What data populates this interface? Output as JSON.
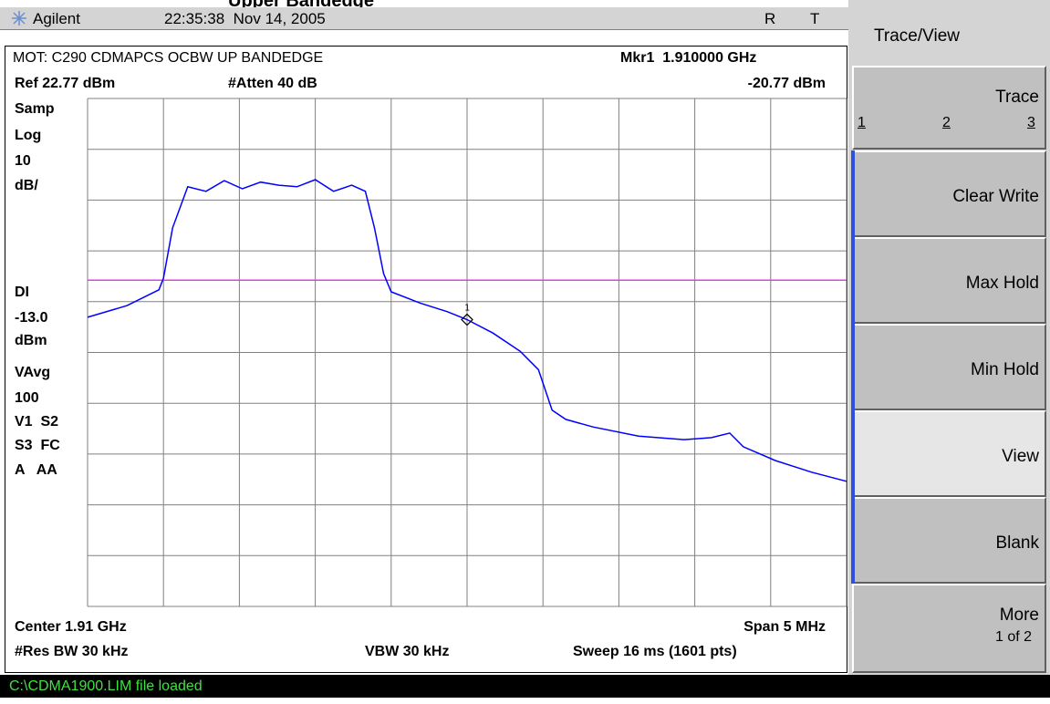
{
  "title_fragment": "Upper Bandedge",
  "status_bar": {
    "brand": "Agilent",
    "datetime": "22:35:38  Nov 14, 2005",
    "flags": [
      "R",
      "T"
    ]
  },
  "screen": {
    "title": "MOT: C290 CDMAPCS OCBW UP BANDEDGE",
    "marker_readout": "Mkr1  1.910000 GHz",
    "ref": "Ref 22.77 dBm",
    "atten": "#Atten 40 dB",
    "marker_level": "-20.77 dBm",
    "left_annotations": [
      "Samp",
      "Log",
      "10",
      "dB/",
      "DI",
      "-13.0",
      "dBm",
      "VAvg",
      "100",
      "V1  S2",
      "S3  FC",
      "A   AA"
    ],
    "center": "Center 1.91 GHz",
    "span": "Span 5 MHz",
    "res_bw": "#Res BW 30 kHz",
    "vbw": "VBW 30 kHz",
    "sweep": "Sweep 16 ms (1601 pts)"
  },
  "trace": {
    "type": "line",
    "color": "#0000ff",
    "xlim": [
      1.9075,
      1.9125
    ],
    "ylim": [
      -77.23,
      22.77
    ],
    "xticks": [
      1.9075,
      1.908,
      1.9085,
      1.909,
      1.9095,
      1.91,
      1.9105,
      1.911,
      1.9115,
      1.912,
      1.9125
    ],
    "yticks": [
      22.77,
      12.77,
      2.77,
      -7.23,
      -17.23,
      -27.23,
      -37.23,
      -47.23,
      -57.23,
      -67.23,
      -77.23
    ],
    "x": [
      1.9075,
      1.90776,
      1.90797,
      1.908,
      1.90806,
      1.90816,
      1.90828,
      1.9084,
      1.90852,
      1.90864,
      1.90876,
      1.90888,
      1.909,
      1.90912,
      1.90924,
      1.90933,
      1.90939,
      1.90945,
      1.9095,
      1.90969,
      1.90987,
      1.91,
      1.91017,
      1.91035,
      1.91047,
      1.91056,
      1.91065,
      1.91083,
      1.91113,
      1.91143,
      1.91161,
      1.91173,
      1.91182,
      1.91203,
      1.91227,
      1.9125
    ],
    "values": [
      -20.3,
      -18.0,
      -14.9,
      -12.6,
      -2.7,
      5.4,
      4.5,
      6.6,
      5.0,
      6.3,
      5.7,
      5.4,
      6.8,
      4.5,
      5.7,
      4.5,
      -2.7,
      -11.7,
      -15.3,
      -17.5,
      -19.2,
      -20.77,
      -23.4,
      -27.0,
      -30.6,
      -38.6,
      -40.4,
      -41.9,
      -43.7,
      -44.4,
      -44.0,
      -43.1,
      -45.8,
      -48.5,
      -50.8,
      -52.6
    ],
    "display_line": -13,
    "display_line_color": "#e040e0",
    "marker": {
      "label": "1",
      "x": 1.91,
      "value": -20.77
    }
  },
  "softkeys": {
    "menu": "Trace/View",
    "keys": [
      {
        "label": "Trace",
        "sub": [
          "1",
          "2",
          "3"
        ]
      },
      {
        "label": "Clear Write"
      },
      {
        "label": "Max Hold"
      },
      {
        "label": "Min Hold"
      },
      {
        "label": "View"
      },
      {
        "label": "Blank"
      },
      {
        "label": "More",
        "sub": [
          "1 of 2"
        ]
      }
    ]
  },
  "message": "C:\\CDMA1900.LIM file loaded"
}
